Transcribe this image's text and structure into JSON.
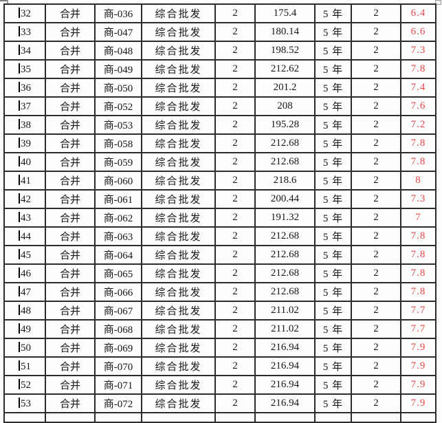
{
  "colors": {
    "rate_red": "#e64545",
    "grid_border": "#2b2b2b",
    "background": "#fdfdfd",
    "text": "#161616"
  },
  "table": {
    "column_names": [
      "row-number",
      "merge-status",
      "item-code",
      "category",
      "quantity",
      "amount",
      "term",
      "count",
      "rate"
    ],
    "caret_row_index": 13,
    "rows": [
      [
        "32",
        "合并",
        "商-036",
        "综合批发",
        "2",
        "175.4",
        "5 年",
        "2",
        "6.4"
      ],
      [
        "33",
        "合并",
        "商-047",
        "综合批发",
        "2",
        "180.14",
        "5 年",
        "2",
        "6.6"
      ],
      [
        "34",
        "合并",
        "商-048",
        "综合批发",
        "2",
        "198.52",
        "5 年",
        "2",
        "7.3"
      ],
      [
        "35",
        "合并",
        "商-049",
        "综合批发",
        "2",
        "212.62",
        "5 年",
        "2",
        "7.8"
      ],
      [
        "36",
        "合并",
        "商-050",
        "综合批发",
        "2",
        "201.2",
        "5 年",
        "2",
        "7.4"
      ],
      [
        "37",
        "合并",
        "商-052",
        "综合批发",
        "2",
        "208",
        "5 年",
        "2",
        "7.6"
      ],
      [
        "38",
        "合并",
        "商-053",
        "综合批发",
        "2",
        "195.28",
        "5 年",
        "2",
        "7.2"
      ],
      [
        "39",
        "合并",
        "商-058",
        "综合批发",
        "2",
        "212.68",
        "5 年",
        "2",
        "7.8"
      ],
      [
        "40",
        "合并",
        "商-059",
        "综合批发",
        "2",
        "212.68",
        "5 年",
        "2",
        "7.8"
      ],
      [
        "41",
        "合并",
        "商-060",
        "综合批发",
        "2",
        "218.6",
        "5 年",
        "2",
        "8"
      ],
      [
        "42",
        "合并",
        "商-061",
        "综合批发",
        "2",
        "200.44",
        "5 年",
        "2",
        "7.3"
      ],
      [
        "43",
        "合并",
        "商-062",
        "综合批发",
        "2",
        "191.32",
        "5 年",
        "2",
        "7"
      ],
      [
        "44",
        "合并",
        "商-063",
        "综合批发",
        "2",
        "212.68",
        "5 年",
        "2",
        "7.8"
      ],
      [
        "45",
        "合并",
        "商-064",
        "综合批发",
        "2",
        "212.68",
        "5 年",
        "2",
        "7.8"
      ],
      [
        "46",
        "合并",
        "商-065",
        "综合批发",
        "2",
        "212.68",
        "5 年",
        "2",
        "7.8"
      ],
      [
        "47",
        "合并",
        "商-066",
        "综合批发",
        "2",
        "212.68",
        "5 年",
        "2",
        "7.8"
      ],
      [
        "48",
        "合并",
        "商-067",
        "综合批发",
        "2",
        "211.02",
        "5 年",
        "2",
        "7.7"
      ],
      [
        "49",
        "合并",
        "商-068",
        "综合批发",
        "2",
        "211.02",
        "5 年",
        "2",
        "7.7"
      ],
      [
        "50",
        "合并",
        "商-069",
        "综合批发",
        "2",
        "216.94",
        "5 年",
        "2",
        "7.9"
      ],
      [
        "51",
        "合并",
        "商-070",
        "综合批发",
        "2",
        "216.94",
        "5 年",
        "2",
        "7.9"
      ],
      [
        "52",
        "合并",
        "商-071",
        "综合批发",
        "2",
        "216.94",
        "5 年",
        "2",
        "7.9"
      ],
      [
        "53",
        "合并",
        "商-072",
        "综合批发",
        "2",
        "216.94",
        "5 年",
        "2",
        "7.9"
      ]
    ]
  }
}
